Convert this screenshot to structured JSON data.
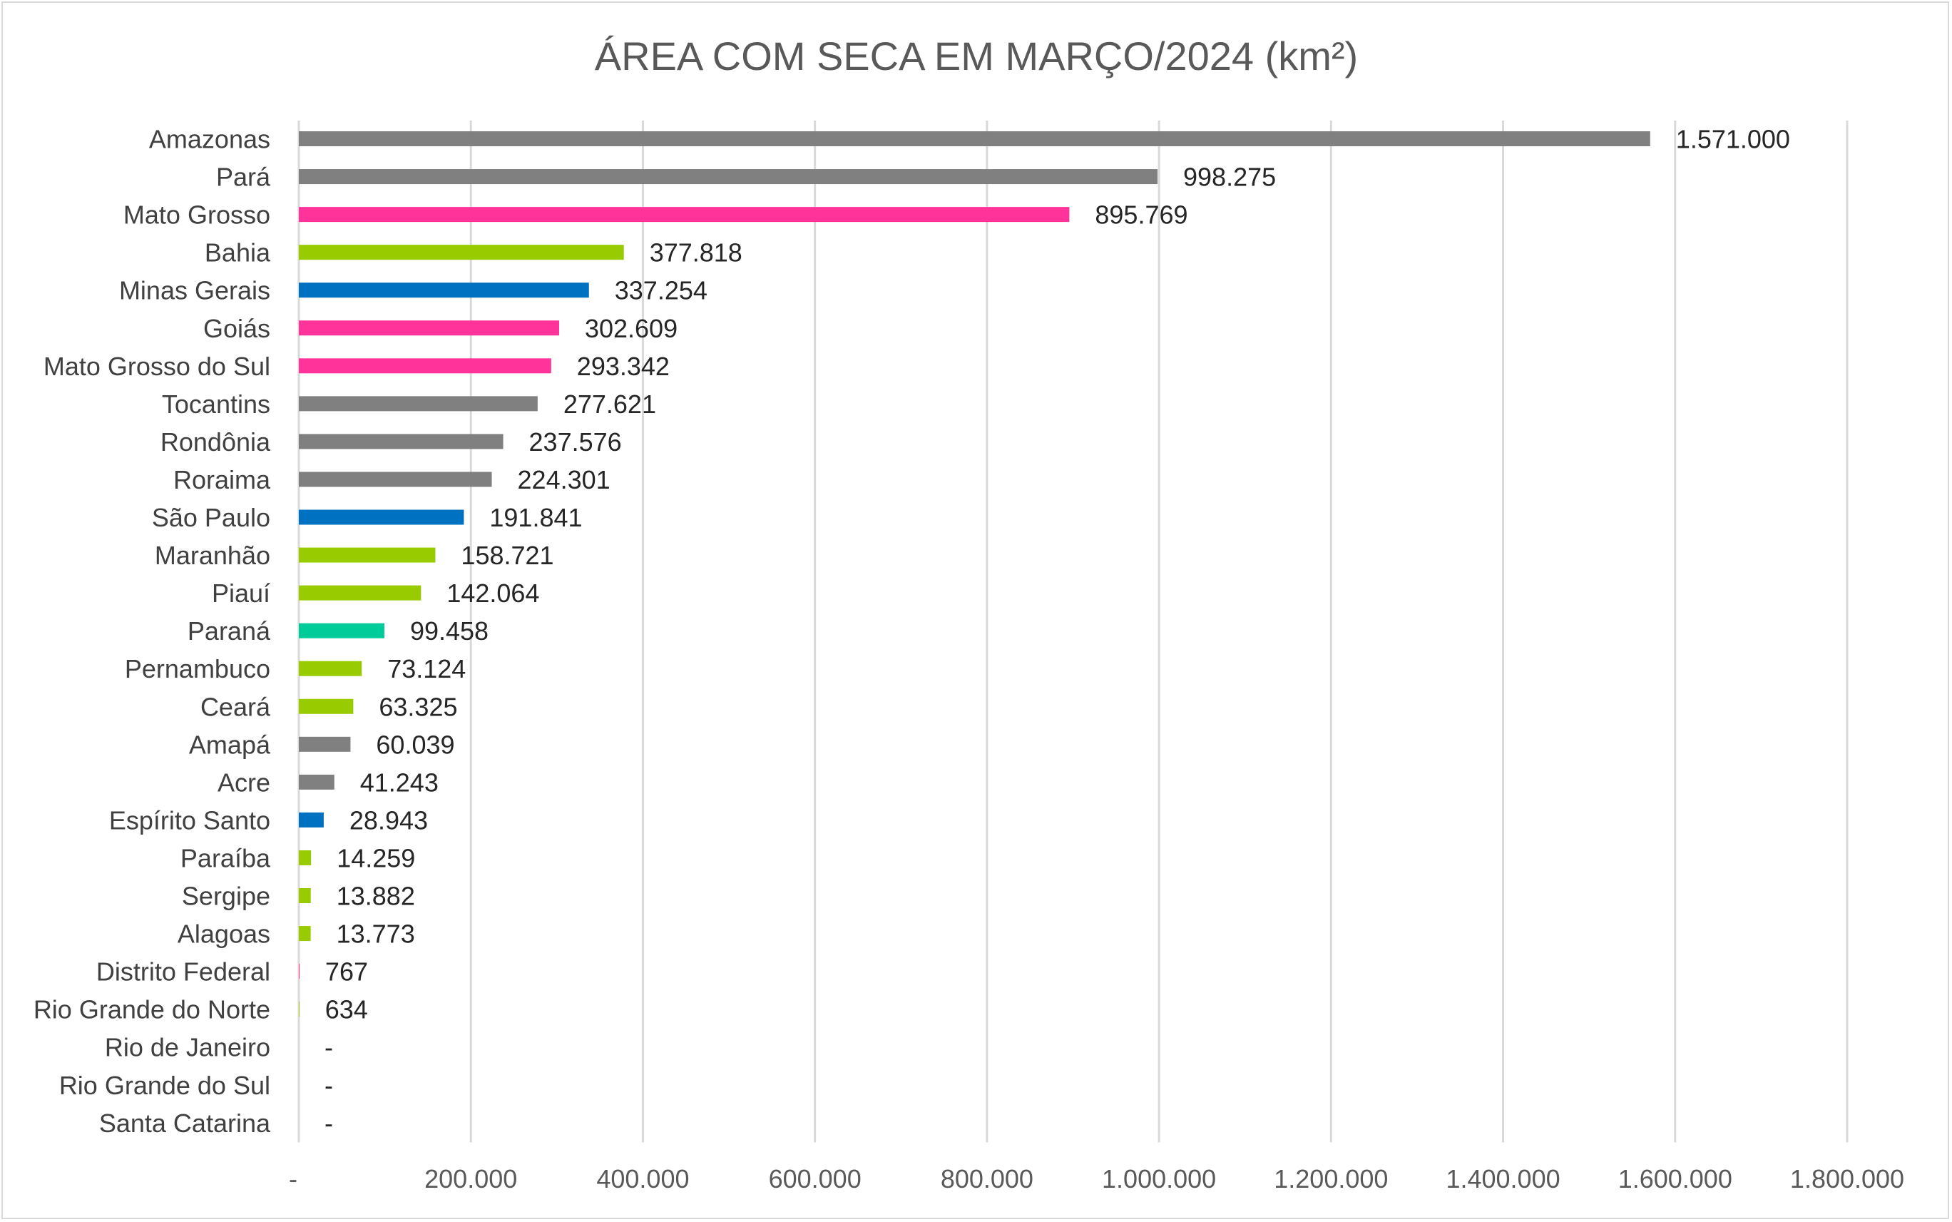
{
  "chart_data": {
    "type": "bar",
    "orientation": "horizontal",
    "title": "ÁREA COM SECA EM MARÇO/2024 (km²)",
    "xlabel": "",
    "ylabel": "",
    "xlim": [
      0,
      1800000
    ],
    "grid": true,
    "legend": "none",
    "x_ticks": [
      {
        "value": 0,
        "label": "-"
      },
      {
        "value": 200000,
        "label": "200.000"
      },
      {
        "value": 400000,
        "label": "400.000"
      },
      {
        "value": 600000,
        "label": "600.000"
      },
      {
        "value": 800000,
        "label": "800.000"
      },
      {
        "value": 1000000,
        "label": "1.000.000"
      },
      {
        "value": 1200000,
        "label": "1.200.000"
      },
      {
        "value": 1400000,
        "label": "1.400.000"
      },
      {
        "value": 1600000,
        "label": "1.600.000"
      },
      {
        "value": 1800000,
        "label": "1.800.000"
      }
    ],
    "bars": [
      {
        "category": "Amazonas",
        "value": 1571000,
        "label": "1.571.000",
        "color": "#808080"
      },
      {
        "category": "Pará",
        "value": 998275,
        "label": "998.275",
        "color": "#808080"
      },
      {
        "category": "Mato Grosso",
        "value": 895769,
        "label": "895.769",
        "color": "#ff3399"
      },
      {
        "category": "Bahia",
        "value": 377818,
        "label": "377.818",
        "color": "#99cc00"
      },
      {
        "category": "Minas Gerais",
        "value": 337254,
        "label": "337.254",
        "color": "#0070c0"
      },
      {
        "category": "Goiás",
        "value": 302609,
        "label": "302.609",
        "color": "#ff3399"
      },
      {
        "category": "Mato Grosso do Sul",
        "value": 293342,
        "label": "293.342",
        "color": "#ff3399"
      },
      {
        "category": "Tocantins",
        "value": 277621,
        "label": "277.621",
        "color": "#808080"
      },
      {
        "category": "Rondônia",
        "value": 237576,
        "label": "237.576",
        "color": "#808080"
      },
      {
        "category": "Roraima",
        "value": 224301,
        "label": "224.301",
        "color": "#808080"
      },
      {
        "category": "São Paulo",
        "value": 191841,
        "label": "191.841",
        "color": "#0070c0"
      },
      {
        "category": "Maranhão",
        "value": 158721,
        "label": "158.721",
        "color": "#99cc00"
      },
      {
        "category": "Piauí",
        "value": 142064,
        "label": "142.064",
        "color": "#99cc00"
      },
      {
        "category": "Paraná",
        "value": 99458,
        "label": "99.458",
        "color": "#00cc99"
      },
      {
        "category": "Pernambuco",
        "value": 73124,
        "label": "73.124",
        "color": "#99cc00"
      },
      {
        "category": "Ceará",
        "value": 63325,
        "label": "63.325",
        "color": "#99cc00"
      },
      {
        "category": "Amapá",
        "value": 60039,
        "label": "60.039",
        "color": "#808080"
      },
      {
        "category": "Acre",
        "value": 41243,
        "label": "41.243",
        "color": "#808080"
      },
      {
        "category": "Espírito Santo",
        "value": 28943,
        "label": "28.943",
        "color": "#0070c0"
      },
      {
        "category": "Paraíba",
        "value": 14259,
        "label": "14.259",
        "color": "#99cc00"
      },
      {
        "category": "Sergipe",
        "value": 13882,
        "label": "13.882",
        "color": "#99cc00"
      },
      {
        "category": "Alagoas",
        "value": 13773,
        "label": "13.773",
        "color": "#99cc00"
      },
      {
        "category": "Distrito Federal",
        "value": 767,
        "label": "767",
        "color": "#ff3399"
      },
      {
        "category": "Rio Grande do Norte",
        "value": 634,
        "label": "634",
        "color": "#99cc00"
      },
      {
        "category": "Rio de Janeiro",
        "value": 0,
        "label": "-",
        "color": "#0070c0"
      },
      {
        "category": "Rio Grande do Sul",
        "value": 0,
        "label": "-",
        "color": "#00cc99"
      },
      {
        "category": "Santa Catarina",
        "value": 0,
        "label": "-",
        "color": "#00cc99"
      }
    ]
  }
}
